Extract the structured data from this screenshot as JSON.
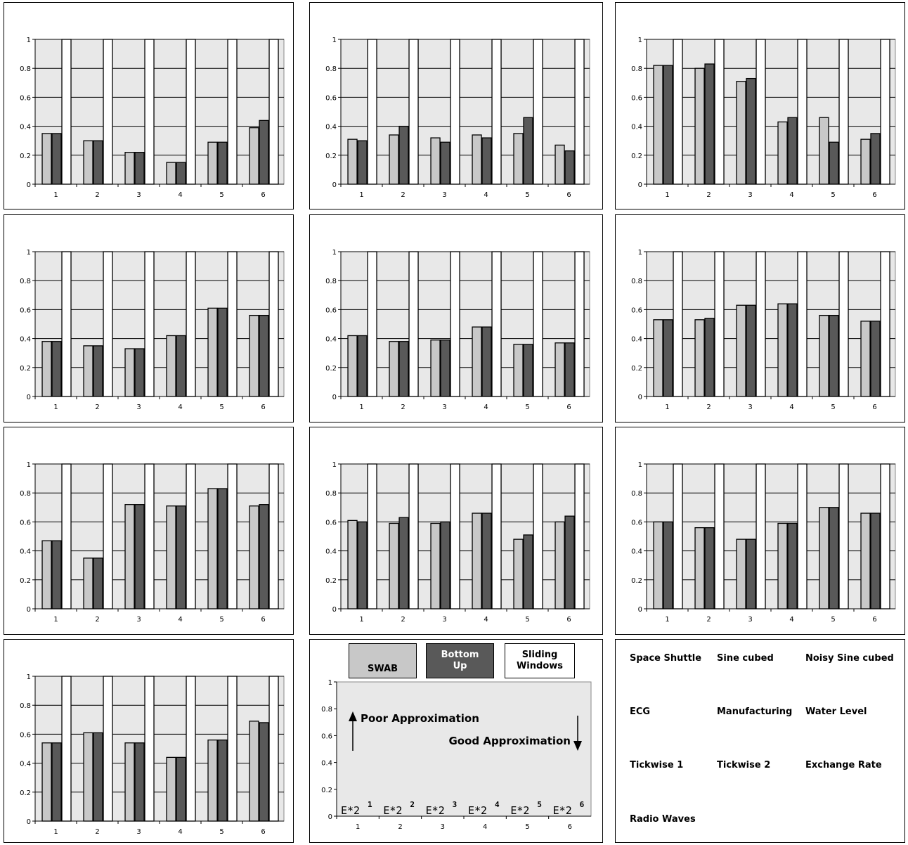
{
  "colors": {
    "swab": "#c8c8c8",
    "bottom_up": "#595959",
    "sliding_windows": "#ffffff",
    "plot_background": "#e8e8e8",
    "grid": "#000000"
  },
  "chart_data": [
    {
      "type": "bar",
      "categories": [
        "1",
        "2",
        "3",
        "4",
        "5",
        "6"
      ],
      "ylim": [
        0,
        1
      ],
      "yticks": [
        "0",
        "0.2",
        "0.4",
        "0.6",
        "0.8",
        "1"
      ],
      "series": [
        {
          "values": [
            0.35,
            0.3,
            0.22,
            0.15,
            0.29,
            0.39
          ]
        },
        {
          "values": [
            0.35,
            0.3,
            0.22,
            0.15,
            0.29,
            0.44
          ]
        },
        {
          "values": [
            1,
            1,
            1,
            1,
            1,
            1
          ]
        }
      ]
    },
    {
      "type": "bar",
      "categories": [
        "1",
        "2",
        "3",
        "4",
        "5",
        "6"
      ],
      "ylim": [
        0,
        1
      ],
      "yticks": [
        "0",
        "0.2",
        "0.4",
        "0.6",
        "0.8",
        "1"
      ],
      "series": [
        {
          "values": [
            0.31,
            0.34,
            0.32,
            0.34,
            0.35,
            0.27
          ]
        },
        {
          "values": [
            0.3,
            0.4,
            0.29,
            0.32,
            0.46,
            0.23
          ]
        },
        {
          "values": [
            1,
            1,
            1,
            1,
            1,
            1
          ]
        }
      ]
    },
    {
      "type": "bar",
      "categories": [
        "1",
        "2",
        "3",
        "4",
        "5",
        "6"
      ],
      "ylim": [
        0,
        1
      ],
      "yticks": [
        "0",
        "0.2",
        "0.4",
        "0.6",
        "0.8",
        "1"
      ],
      "series": [
        {
          "values": [
            0.82,
            0.8,
            0.71,
            0.43,
            0.46,
            0.31
          ]
        },
        {
          "values": [
            0.82,
            0.83,
            0.73,
            0.46,
            0.29,
            0.35
          ]
        },
        {
          "values": [
            1,
            1,
            1,
            1,
            1,
            1
          ]
        }
      ]
    },
    {
      "type": "bar",
      "categories": [
        "1",
        "2",
        "3",
        "4",
        "5",
        "6"
      ],
      "ylim": [
        0,
        1
      ],
      "yticks": [
        "0",
        "0.2",
        "0.4",
        "0.6",
        "0.8",
        "1"
      ],
      "series": [
        {
          "values": [
            0.38,
            0.35,
            0.33,
            0.42,
            0.61,
            0.56
          ]
        },
        {
          "values": [
            0.38,
            0.35,
            0.33,
            0.42,
            0.61,
            0.56
          ]
        },
        {
          "values": [
            1,
            1,
            1,
            1,
            1,
            1
          ]
        }
      ]
    },
    {
      "type": "bar",
      "categories": [
        "1",
        "2",
        "3",
        "4",
        "5",
        "6"
      ],
      "ylim": [
        0,
        1
      ],
      "yticks": [
        "0",
        "0.2",
        "0.4",
        "0.6",
        "0.8",
        "1"
      ],
      "series": [
        {
          "values": [
            0.42,
            0.38,
            0.39,
            0.48,
            0.36,
            0.37
          ]
        },
        {
          "values": [
            0.42,
            0.38,
            0.39,
            0.48,
            0.36,
            0.37
          ]
        },
        {
          "values": [
            1,
            1,
            1,
            1,
            1,
            1
          ]
        }
      ]
    },
    {
      "type": "bar",
      "categories": [
        "1",
        "2",
        "3",
        "4",
        "5",
        "6"
      ],
      "ylim": [
        0,
        1
      ],
      "yticks": [
        "0",
        "0.2",
        "0.4",
        "0.6",
        "0.8",
        "1"
      ],
      "series": [
        {
          "values": [
            0.53,
            0.53,
            0.63,
            0.64,
            0.56,
            0.52
          ]
        },
        {
          "values": [
            0.53,
            0.54,
            0.63,
            0.64,
            0.56,
            0.52
          ]
        },
        {
          "values": [
            1,
            1,
            1,
            1,
            1,
            1
          ]
        }
      ]
    },
    {
      "type": "bar",
      "categories": [
        "1",
        "2",
        "3",
        "4",
        "5",
        "6"
      ],
      "ylim": [
        0,
        1
      ],
      "yticks": [
        "0",
        "0.2",
        "0.4",
        "0.6",
        "0.8",
        "1"
      ],
      "series": [
        {
          "values": [
            0.47,
            0.35,
            0.72,
            0.71,
            0.83,
            0.71
          ]
        },
        {
          "values": [
            0.47,
            0.35,
            0.72,
            0.71,
            0.83,
            0.72
          ]
        },
        {
          "values": [
            1,
            1,
            1,
            1,
            1,
            1
          ]
        }
      ]
    },
    {
      "type": "bar",
      "categories": [
        "1",
        "2",
        "3",
        "4",
        "5",
        "6"
      ],
      "ylim": [
        0,
        1
      ],
      "yticks": [
        "0",
        "0.2",
        "0.4",
        "0.6",
        "0.8",
        "1"
      ],
      "series": [
        {
          "values": [
            0.61,
            0.59,
            0.59,
            0.66,
            0.48,
            0.6
          ]
        },
        {
          "values": [
            0.6,
            0.63,
            0.6,
            0.66,
            0.51,
            0.64
          ]
        },
        {
          "values": [
            1,
            1,
            1,
            1,
            1,
            1
          ]
        }
      ]
    },
    {
      "type": "bar",
      "categories": [
        "1",
        "2",
        "3",
        "4",
        "5",
        "6"
      ],
      "ylim": [
        0,
        1
      ],
      "yticks": [
        "0",
        "0.2",
        "0.4",
        "0.6",
        "0.8",
        "1"
      ],
      "series": [
        {
          "values": [
            0.6,
            0.56,
            0.48,
            0.59,
            0.7,
            0.66
          ]
        },
        {
          "values": [
            0.6,
            0.56,
            0.48,
            0.59,
            0.7,
            0.66
          ]
        },
        {
          "values": [
            1,
            1,
            1,
            1,
            1,
            1
          ]
        }
      ]
    },
    {
      "type": "bar",
      "categories": [
        "1",
        "2",
        "3",
        "4",
        "5",
        "6"
      ],
      "ylim": [
        0,
        1
      ],
      "yticks": [
        "0",
        "0.2",
        "0.4",
        "0.6",
        "0.8",
        "1"
      ],
      "series": [
        {
          "values": [
            0.54,
            0.61,
            0.54,
            0.44,
            0.56,
            0.69
          ]
        },
        {
          "values": [
            0.54,
            0.61,
            0.54,
            0.44,
            0.56,
            0.68
          ]
        },
        {
          "values": [
            1,
            1,
            1,
            1,
            1,
            1
          ]
        }
      ]
    }
  ],
  "legend": {
    "swab_label": "SWAB",
    "bottom_up_line1": "Bottom",
    "bottom_up_line2": "Up",
    "sliding_line1": "Sliding",
    "sliding_line2": "Windows",
    "poor": "Poor Approximation",
    "good": "Good Approximation",
    "yticks": [
      "0",
      "0.2",
      "0.4",
      "0.6",
      "0.8",
      "1"
    ],
    "xticks": [
      "1",
      "2",
      "3",
      "4",
      "5",
      "6"
    ],
    "error_base": "E*2",
    "error_exponents": [
      "1",
      "2",
      "3",
      "4",
      "5",
      "6"
    ]
  },
  "datasets": {
    "names": [
      "Space Shuttle",
      "Sine cubed",
      "Noisy Sine cubed",
      "ECG",
      "Manufacturing",
      "Water Level",
      "Tickwise 1",
      "Tickwise 2",
      "Exchange Rate",
      "Radio Waves"
    ]
  }
}
